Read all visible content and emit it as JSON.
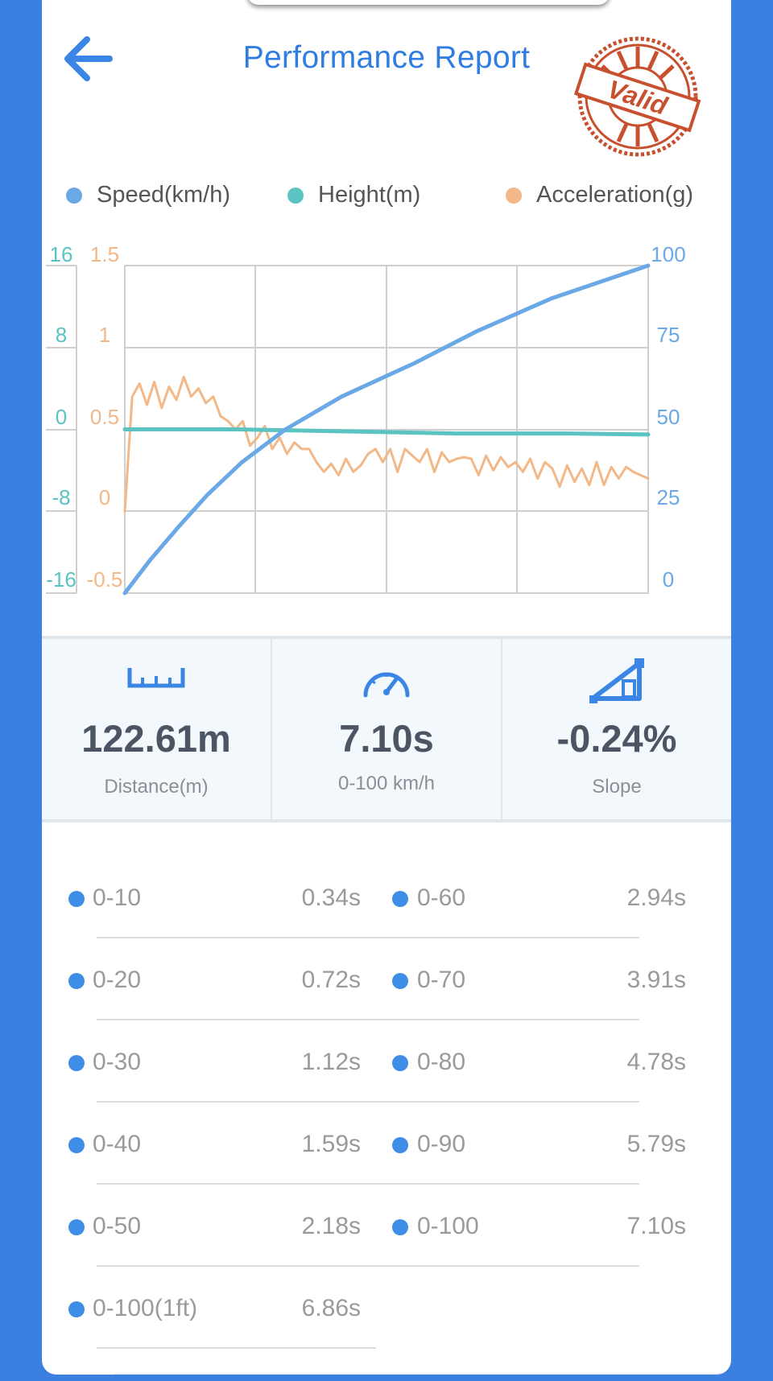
{
  "header": {
    "title": "Performance Report",
    "stamp_text": "Valid",
    "back_icon": "arrow-left-icon"
  },
  "legend": [
    {
      "label": "Speed(km/h)",
      "color": "#6aa9e6"
    },
    {
      "label": "Height(m)",
      "color": "#5bc3c2"
    },
    {
      "label": "Acceleration(g)",
      "color": "#f2b888"
    }
  ],
  "chart_data": {
    "type": "line",
    "axes": {
      "height": {
        "ticks": [
          "16",
          "8",
          "0",
          "-8",
          "-16"
        ],
        "range": [
          -16,
          16
        ],
        "color": "#5bc3c2"
      },
      "acceleration": {
        "ticks": [
          "1.5",
          "1",
          "0.5",
          "0",
          "-0.5"
        ],
        "range": [
          -0.5,
          1.5
        ],
        "color": "#f2b888"
      },
      "speed": {
        "ticks": [
          "100",
          "75",
          "50",
          "25",
          "0"
        ],
        "range": [
          0,
          100
        ],
        "color": "#6aa9e6"
      }
    },
    "time_range": [
      0,
      7.1
    ],
    "grid": true,
    "series": [
      {
        "name": "Speed(km/h)",
        "x": [
          0,
          0.34,
          0.72,
          1.12,
          1.59,
          2.18,
          2.94,
          3.91,
          4.78,
          5.79,
          7.1
        ],
        "y": [
          0,
          10,
          20,
          30,
          40,
          50,
          60,
          70,
          80,
          90,
          100
        ],
        "color": "#6aa9e6"
      },
      {
        "name": "Height(m)",
        "x": [
          0,
          1.5,
          3.0,
          4.5,
          6.0,
          7.1
        ],
        "y": [
          0,
          0,
          -0.2,
          -0.4,
          -0.4,
          -0.5
        ],
        "color": "#5bc3c2"
      },
      {
        "name": "Acceleration(g)",
        "x": [
          0,
          0.1,
          0.2,
          0.3,
          0.4,
          0.5,
          0.6,
          0.7,
          0.8,
          0.9,
          1.0,
          1.1,
          1.2,
          1.3,
          1.4,
          1.5,
          1.6,
          1.7,
          1.8,
          1.9,
          2.0,
          2.1,
          2.2,
          2.3,
          2.4,
          2.5,
          2.6,
          2.7,
          2.8,
          2.9,
          3.0,
          3.1,
          3.2,
          3.3,
          3.4,
          3.5,
          3.6,
          3.7,
          3.8,
          3.9,
          4.0,
          4.1,
          4.2,
          4.3,
          4.4,
          4.5,
          4.6,
          4.7,
          4.8,
          4.9,
          5.0,
          5.1,
          5.2,
          5.3,
          5.4,
          5.5,
          5.6,
          5.7,
          5.8,
          5.9,
          6.0,
          6.1,
          6.2,
          6.3,
          6.4,
          6.5,
          6.6,
          6.7,
          6.8,
          6.9,
          7.0,
          7.1
        ],
        "y": [
          0.0,
          0.7,
          0.78,
          0.65,
          0.79,
          0.63,
          0.76,
          0.68,
          0.82,
          0.7,
          0.75,
          0.66,
          0.7,
          0.58,
          0.55,
          0.5,
          0.55,
          0.4,
          0.45,
          0.52,
          0.38,
          0.45,
          0.35,
          0.42,
          0.38,
          0.38,
          0.3,
          0.24,
          0.29,
          0.22,
          0.32,
          0.24,
          0.28,
          0.35,
          0.38,
          0.3,
          0.38,
          0.24,
          0.38,
          0.34,
          0.3,
          0.38,
          0.24,
          0.36,
          0.3,
          0.32,
          0.33,
          0.32,
          0.22,
          0.34,
          0.25,
          0.33,
          0.27,
          0.3,
          0.24,
          0.32,
          0.2,
          0.3,
          0.26,
          0.15,
          0.28,
          0.18,
          0.26,
          0.16,
          0.3,
          0.16,
          0.27,
          0.2,
          0.27,
          0.24,
          0.22,
          0.2
        ],
        "color": "#f2b888"
      }
    ]
  },
  "stats": [
    {
      "icon": "ruler-icon",
      "value": "122.61m",
      "label": "Distance(m)"
    },
    {
      "icon": "speedometer-icon",
      "value": "7.10s",
      "label": "0-100 km/h"
    },
    {
      "icon": "slope-icon",
      "value": "-0.24%",
      "label": "Slope"
    }
  ],
  "splits": [
    {
      "label": "0-10",
      "value": "0.34s"
    },
    {
      "label": "0-60",
      "value": "2.94s"
    },
    {
      "label": "0-20",
      "value": "0.72s"
    },
    {
      "label": "0-70",
      "value": "3.91s"
    },
    {
      "label": "0-30",
      "value": "1.12s"
    },
    {
      "label": "0-80",
      "value": "4.78s"
    },
    {
      "label": "0-40",
      "value": "1.59s"
    },
    {
      "label": "0-90",
      "value": "5.79s"
    },
    {
      "label": "0-50",
      "value": "2.18s"
    },
    {
      "label": "0-100",
      "value": "7.10s"
    },
    {
      "label": "0-100(1ft)",
      "value": "6.86s"
    }
  ]
}
